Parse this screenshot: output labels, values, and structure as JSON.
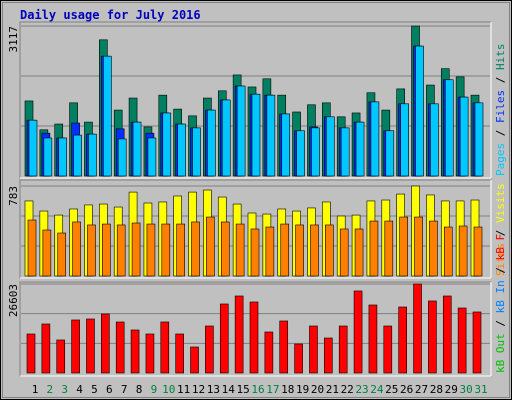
{
  "chart_data": [
    {
      "type": "bar",
      "title": "Daily usage for July 2016",
      "ylim": [
        0,
        3117
      ],
      "yticks": [
        3117
      ],
      "grid": true,
      "legend_separator": " / ",
      "series": [
        {
          "name": "Hits",
          "color": "#008060",
          "values": [
            1560,
            960,
            1080,
            1520,
            1120,
            2830,
            1370,
            1620,
            1020,
            1680,
            1390,
            1250,
            1620,
            1770,
            2100,
            1850,
            2020,
            1680,
            1330,
            1480,
            1520,
            1230,
            1310,
            1730,
            1370,
            1810,
            3117,
            1890,
            2230,
            2060,
            1680
          ]
        },
        {
          "name": "Files",
          "color": "#0030ff",
          "values": [
            1160,
            890,
            790,
            1100,
            870,
            2490,
            980,
            1120,
            890,
            1310,
            1080,
            1000,
            1370,
            1580,
            1870,
            1700,
            1680,
            1290,
            940,
            1020,
            1230,
            1000,
            1120,
            1540,
            940,
            1500,
            2700,
            1500,
            2000,
            1640,
            1520
          ]
        },
        {
          "name": "Pages",
          "color": "#00c8ff",
          "values": [
            1160,
            790,
            790,
            850,
            870,
            2490,
            770,
            1120,
            790,
            1310,
            1080,
            1000,
            1370,
            1580,
            1870,
            1700,
            1680,
            1290,
            940,
            1000,
            1230,
            1000,
            1120,
            1540,
            940,
            1500,
            2700,
            1500,
            2000,
            1640,
            1520
          ]
        }
      ]
    },
    {
      "type": "bar",
      "ylim": [
        0,
        783
      ],
      "yticks": [
        783
      ],
      "grid": true,
      "legend_separator": " / ",
      "series": [
        {
          "name": "Visits",
          "color": "#ffff00",
          "values": [
            653,
            565,
            530,
            583,
            618,
            626,
            600,
            730,
            635,
            644,
            696,
            730,
            748,
            687,
            626,
            548,
            539,
            583,
            565,
            592,
            644,
            522,
            530,
            653,
            661,
            713,
            783,
            705,
            653,
            653,
            661
          ]
        },
        {
          "name": "Sites",
          "color": "#ff8000",
          "values": [
            487,
            400,
            374,
            470,
            444,
            452,
            444,
            461,
            452,
            452,
            452,
            470,
            513,
            470,
            452,
            409,
            426,
            452,
            444,
            444,
            444,
            409,
            409,
            478,
            478,
            513,
            513,
            478,
            426,
            435,
            426
          ]
        }
      ]
    },
    {
      "type": "bar",
      "ylim": [
        0,
        26603
      ],
      "yticks": [
        26603
      ],
      "grid": true,
      "legend_separator": " / ",
      "categories": [
        "1",
        "2",
        "3",
        "4",
        "5",
        "6",
        "7",
        "8",
        "9",
        "10",
        "11",
        "12",
        "13",
        "14",
        "15",
        "16",
        "17",
        "18",
        "19",
        "20",
        "21",
        "22",
        "23",
        "24",
        "25",
        "26",
        "27",
        "28",
        "29",
        "30",
        "31"
      ],
      "category_colors": [
        "#000000",
        "#008040",
        "#008040",
        "#000000",
        "#000000",
        "#000000",
        "#000000",
        "#000000",
        "#008040",
        "#008040",
        "#000000",
        "#000000",
        "#000000",
        "#000000",
        "#000000",
        "#008040",
        "#008040",
        "#000000",
        "#000000",
        "#000000",
        "#000000",
        "#000000",
        "#008040",
        "#008040",
        "#000000",
        "#000000",
        "#000000",
        "#000000",
        "#000000",
        "#008040",
        "#008040"
      ],
      "series": [
        {
          "name": "kB F",
          "color": "#ff0000",
          "values": [
            11660,
            14650,
            9870,
            15850,
            16150,
            17640,
            15250,
            12860,
            11660,
            15250,
            11660,
            7770,
            14050,
            20630,
            23020,
            21230,
            12260,
            15550,
            8670,
            14050,
            10460,
            14050,
            24520,
            20330,
            14050,
            19730,
            26603,
            21530,
            23020,
            19430,
            18240
          ]
        },
        {
          "name": "kB In",
          "color": "#0080ff",
          "values": [
            0,
            0,
            0,
            0,
            0,
            0,
            0,
            0,
            0,
            0,
            0,
            0,
            0,
            0,
            0,
            0,
            0,
            0,
            0,
            0,
            0,
            0,
            0,
            0,
            0,
            0,
            0,
            0,
            0,
            0,
            0
          ]
        },
        {
          "name": "kB Out",
          "color": "#00c000",
          "values": [
            0,
            0,
            0,
            0,
            0,
            0,
            0,
            0,
            0,
            0,
            0,
            0,
            0,
            0,
            0,
            0,
            0,
            0,
            0,
            0,
            0,
            0,
            0,
            0,
            0,
            0,
            0,
            0,
            0,
            0,
            0
          ]
        }
      ]
    }
  ]
}
